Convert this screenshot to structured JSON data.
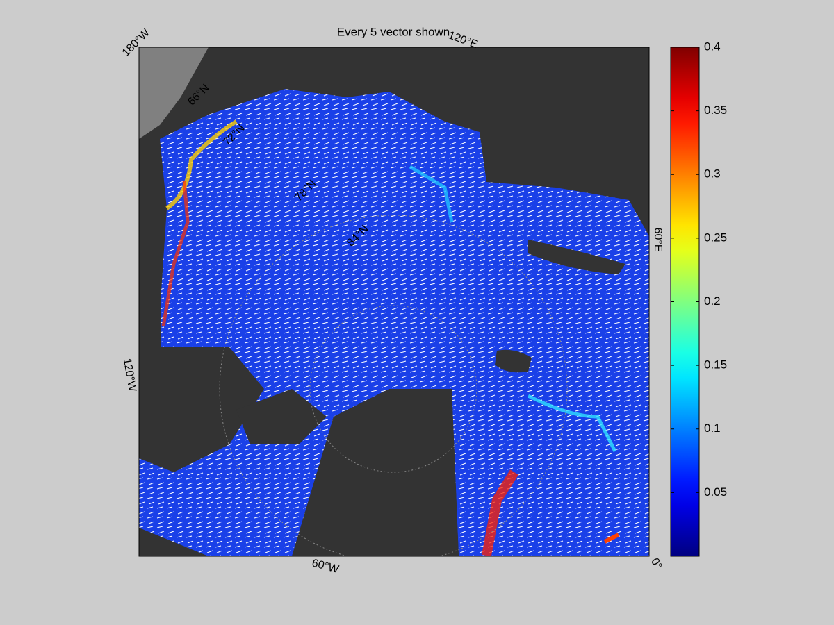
{
  "chart_data": {
    "type": "vector-map",
    "title": "Every 5 vector shown",
    "graticule_labels": [
      "180°W",
      "120°E",
      "60°E",
      "0°",
      "60°W",
      "120°W",
      "66°N",
      "72°N",
      "78°N",
      "84°N"
    ],
    "colorbar": {
      "colormap": "jet",
      "lim": [
        0,
        0.4
      ],
      "ticks": [
        0.05,
        0.1,
        0.15,
        0.2,
        0.25,
        0.3,
        0.35,
        0.4
      ]
    }
  }
}
